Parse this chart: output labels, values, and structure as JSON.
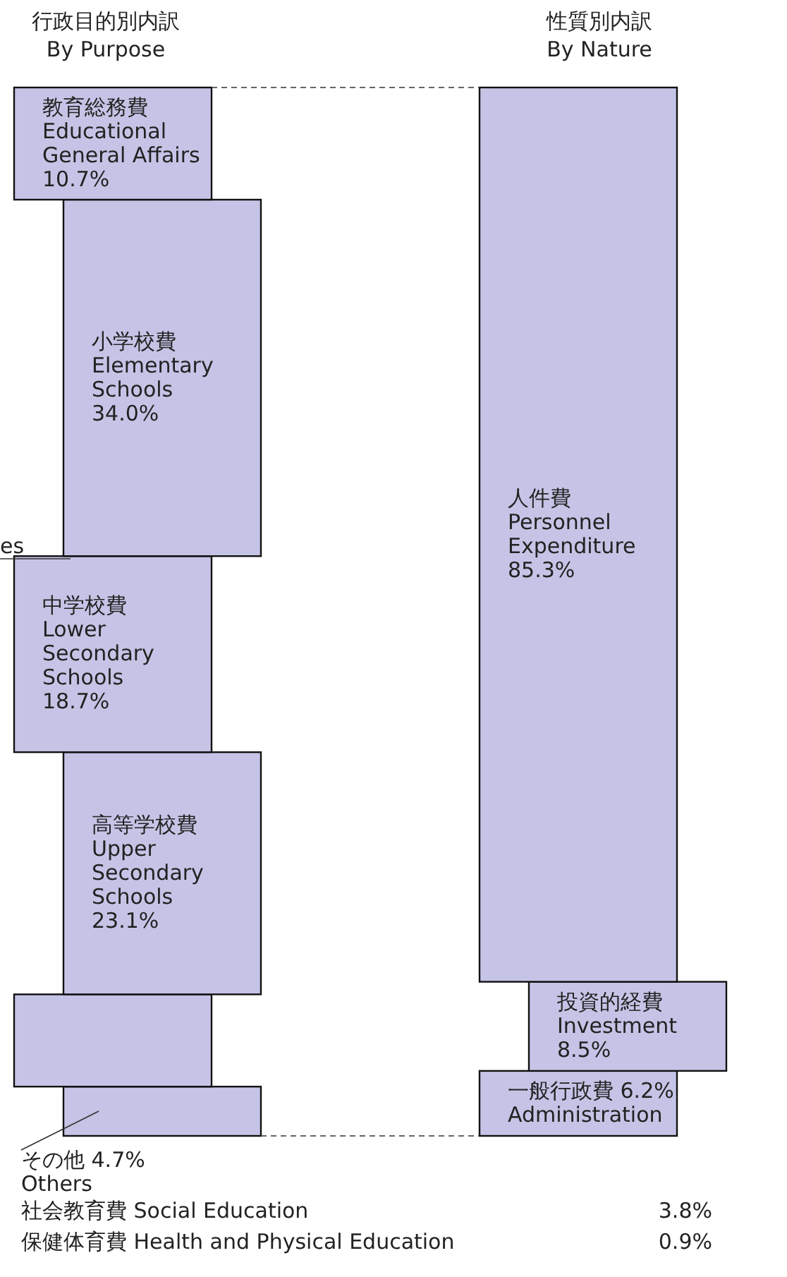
{
  "chart_data": [
    {
      "type": "bar",
      "stacked": true,
      "title": "行政目的別内訳\nBy Purpose",
      "categories": [
        null
      ],
      "series": [
        {
          "name": "その他 4.7%\nOthers",
          "color": "#c6c4e6",
          "values": [
            4.7
          ]
        },
        {
          "color": "#c6c4e6",
          "values": [
            8.8
          ]
        },
        {
          "name": "高等学校費\nUpper\nSecondary\nSchools",
          "color": "#c6c4e6",
          "values": [
            23.1
          ],
          "value_labels": [
            "23.1%"
          ]
        },
        {
          "name": "中学校費\nLower\nSecondary\nSchools",
          "color": "#c6c4e6",
          "values": [
            18.7
          ],
          "value_labels": [
            "18.7%"
          ]
        },
        {
          "name": "小学校費\nElementary\nSchools",
          "color": "#c6c4e6",
          "values": [
            34.0
          ],
          "value_labels": [
            "34.0%"
          ]
        },
        {
          "name": "教育総務費\nEducational\nGeneral Affairs",
          "color": "#c6c4e6",
          "values": [
            10.7
          ],
          "value_labels": [
            "10.7%"
          ]
        }
      ],
      "annotations": [
        "es",
        "社会教育費 Social Education",
        "3.8%",
        "保健体育費 Health and Physical Education",
        "0.9%"
      ]
    },
    {
      "type": "bar",
      "stacked": true,
      "title": "性質別内訳\nBy Nature",
      "categories": [
        null
      ],
      "series": [
        {
          "name": "一般行政費 6.2%\nAdministration",
          "color": "#c6c4e6",
          "values": [
            6.2
          ]
        },
        {
          "name": "投資的経費\nInvestment",
          "color": "#c6c4e6",
          "values": [
            8.5
          ],
          "value_labels": [
            "8.5%"
          ]
        },
        {
          "name": "人件費\nPersonnel\nExpenditure",
          "color": "#c6c4e6",
          "values": [
            85.3
          ],
          "value_labels": [
            "85.3%"
          ]
        }
      ]
    }
  ]
}
